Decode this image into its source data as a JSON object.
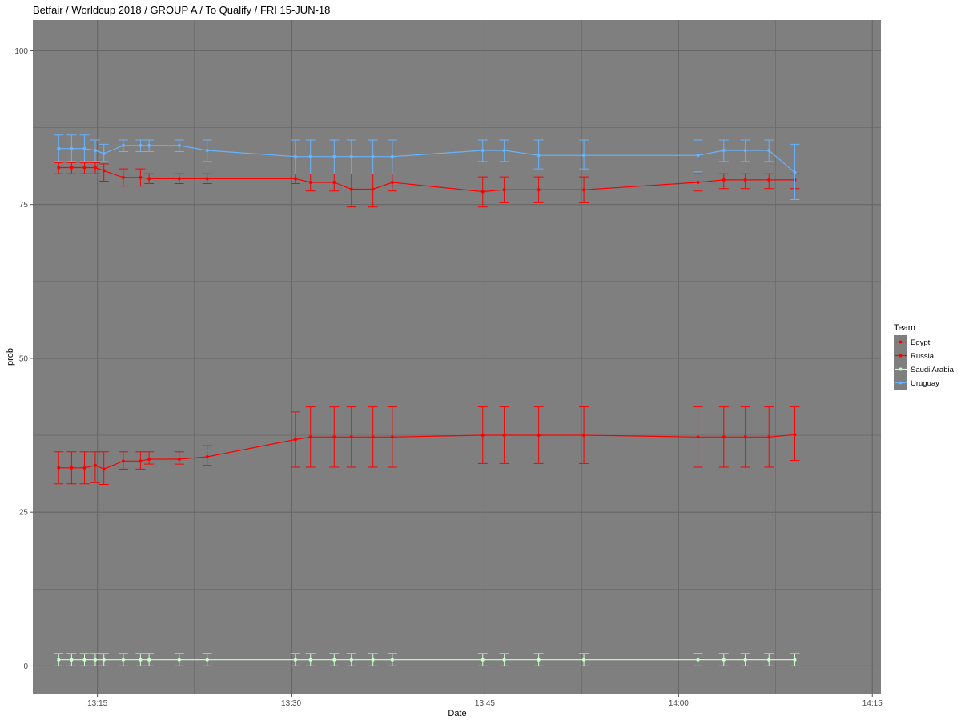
{
  "chart_data": {
    "type": "line",
    "title": "Betfair / Worldcup 2018 / GROUP A / To Qualify / FRI 15-JUN-18",
    "xlabel": "Date",
    "ylabel": "prob",
    "xlim": [
      "13:10:00",
      "14:15:40"
    ],
    "ylim": [
      -4.5,
      105
    ],
    "x_ticks": [
      "13:15",
      "13:30",
      "13:45",
      "14:00",
      "14:15"
    ],
    "y_ticks": [
      0,
      25,
      50,
      75,
      100
    ],
    "grid": true,
    "panel_background": "#7f7f7f",
    "gridline_color": "#666666",
    "legend": {
      "title": "Team",
      "placement": "right"
    },
    "x": [
      "13:12:00",
      "13:13:00",
      "13:14:00",
      "13:14:50",
      "13:15:30",
      "13:17:00",
      "13:18:20",
      "13:19:00",
      "13:21:20",
      "13:23:30",
      "13:30:20",
      "13:31:30",
      "13:33:20",
      "13:34:40",
      "13:36:20",
      "13:37:50",
      "13:44:50",
      "13:46:30",
      "13:49:10",
      "13:52:40",
      "14:01:30",
      "14:03:30",
      "14:05:10",
      "14:07:00",
      "14:09:00"
    ],
    "series": [
      {
        "name": "Egypt",
        "color": "#ff0000",
        "y": [
          32.2,
          32.2,
          32.2,
          32.6,
          32.0,
          33.3,
          33.3,
          33.6,
          33.6,
          34.0,
          36.8,
          37.2,
          37.2,
          37.2,
          37.2,
          37.2,
          37.5,
          37.5,
          37.5,
          37.5,
          37.2,
          37.2,
          37.2,
          37.2,
          37.6
        ],
        "ymin": [
          29.6,
          29.6,
          29.6,
          29.8,
          29.5,
          32.0,
          32.0,
          32.8,
          32.8,
          32.6,
          32.3,
          32.3,
          32.3,
          32.3,
          32.3,
          32.3,
          32.9,
          32.9,
          32.9,
          32.9,
          32.3,
          32.3,
          32.3,
          32.3,
          33.4
        ],
        "ymax": [
          34.8,
          34.8,
          34.8,
          34.8,
          34.8,
          34.8,
          34.8,
          34.8,
          34.8,
          35.8,
          41.3,
          42.1,
          42.1,
          42.1,
          42.1,
          42.1,
          42.1,
          42.1,
          42.1,
          42.1,
          42.1,
          42.1,
          42.1,
          42.1,
          42.1
        ]
      },
      {
        "name": "Russia",
        "color": "#ff0000",
        "y": [
          81.0,
          81.0,
          81.0,
          81.0,
          80.5,
          79.4,
          79.4,
          79.2,
          79.2,
          79.2,
          79.2,
          78.6,
          78.6,
          77.5,
          77.5,
          78.6,
          77.1,
          77.4,
          77.4,
          77.4,
          78.6,
          79.0,
          79.0,
          79.0,
          79.0
        ],
        "ymin": [
          80.0,
          80.0,
          80.0,
          80.0,
          78.8,
          78.0,
          78.0,
          78.4,
          78.4,
          78.4,
          78.4,
          77.2,
          77.2,
          74.6,
          74.6,
          77.2,
          74.6,
          75.3,
          75.3,
          75.3,
          77.2,
          77.6,
          77.6,
          77.6,
          77.6
        ],
        "ymax": [
          81.8,
          81.8,
          81.8,
          81.8,
          81.6,
          80.8,
          80.8,
          80.0,
          80.0,
          80.0,
          80.0,
          80.0,
          80.0,
          80.0,
          80.0,
          80.0,
          79.5,
          79.5,
          79.5,
          79.5,
          80.0,
          80.0,
          80.0,
          80.0,
          80.0
        ]
      },
      {
        "name": "Saudi Arabia",
        "color": "#ccffcc",
        "y": [
          1.0,
          1.0,
          1.0,
          1.0,
          1.0,
          1.0,
          1.0,
          1.0,
          1.0,
          1.0,
          1.0,
          1.0,
          1.0,
          1.0,
          1.0,
          1.0,
          1.0,
          1.0,
          1.0,
          1.0,
          1.0,
          1.0,
          1.0,
          1.0,
          1.0
        ],
        "ymin": [
          0.0,
          0.0,
          0.0,
          0.0,
          0.0,
          0.0,
          0.0,
          0.0,
          0.0,
          0.0,
          0.0,
          0.0,
          0.0,
          0.0,
          0.0,
          0.0,
          0.0,
          0.0,
          0.0,
          0.0,
          0.0,
          0.0,
          0.0,
          0.0,
          0.0
        ],
        "ymax": [
          2.0,
          2.0,
          2.0,
          2.0,
          2.0,
          2.0,
          2.0,
          2.0,
          2.0,
          2.0,
          2.0,
          2.0,
          2.0,
          2.0,
          2.0,
          2.0,
          2.0,
          2.0,
          2.0,
          2.0,
          2.0,
          2.0,
          2.0,
          2.0,
          2.0
        ]
      },
      {
        "name": "Uruguay",
        "color": "#66b3ff",
        "y": [
          84.1,
          84.1,
          84.1,
          83.8,
          83.3,
          84.6,
          84.6,
          84.6,
          84.6,
          83.8,
          82.8,
          82.8,
          82.8,
          82.8,
          82.8,
          82.8,
          83.8,
          83.8,
          83.0,
          83.0,
          83.0,
          83.8,
          83.8,
          83.8,
          80.2
        ],
        "ymin": [
          82.0,
          82.0,
          82.0,
          82.0,
          82.0,
          83.6,
          83.6,
          83.6,
          83.6,
          82.0,
          80.0,
          80.0,
          80.0,
          80.0,
          80.0,
          80.0,
          82.0,
          82.0,
          80.8,
          80.8,
          80.3,
          82.0,
          82.0,
          82.0,
          75.8
        ],
        "ymax": [
          86.3,
          86.3,
          86.3,
          85.5,
          84.8,
          85.5,
          85.5,
          85.5,
          85.5,
          85.5,
          85.5,
          85.5,
          85.5,
          85.5,
          85.5,
          85.5,
          85.5,
          85.5,
          85.5,
          85.5,
          85.5,
          85.5,
          85.5,
          85.5,
          84.8
        ]
      }
    ]
  }
}
